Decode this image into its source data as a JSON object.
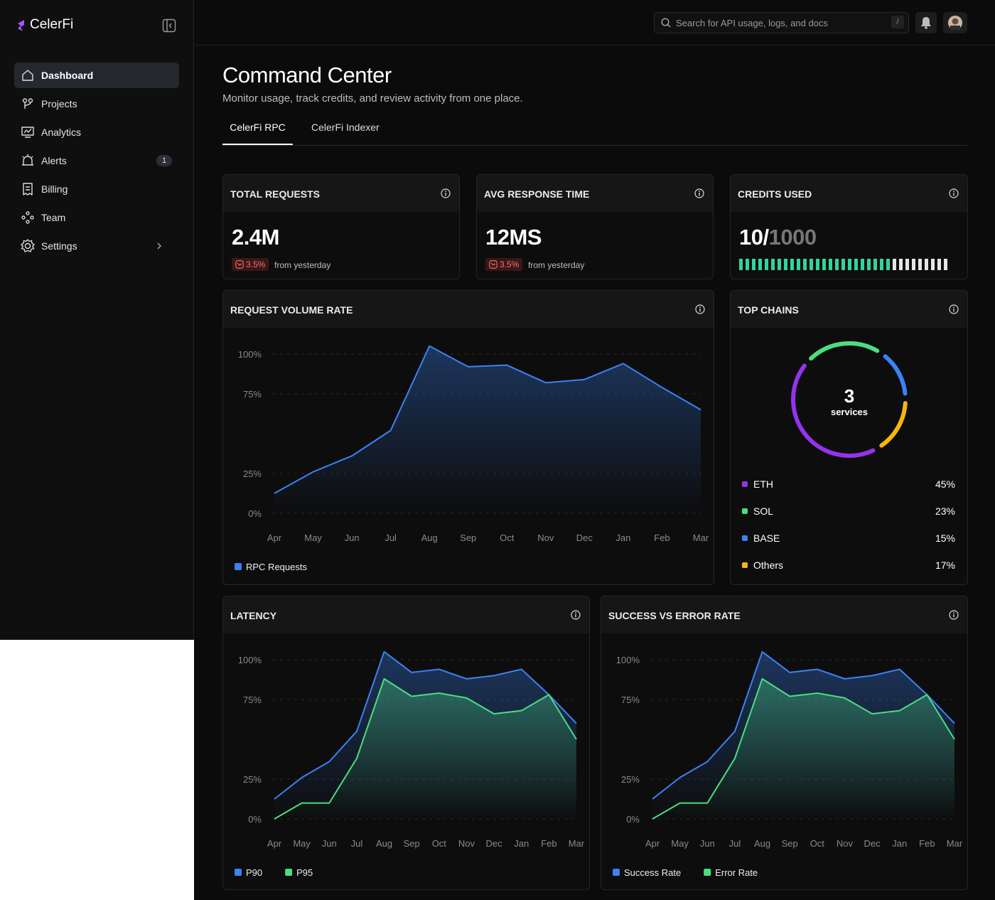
{
  "sidebar": {
    "brand": "CelerFi",
    "nav": [
      {
        "label": "Dashboard"
      },
      {
        "label": "Projects"
      },
      {
        "label": "Analytics"
      },
      {
        "label": "Alerts",
        "badge": "1"
      },
      {
        "label": "Billing"
      },
      {
        "label": "Team"
      },
      {
        "label": "Settings"
      }
    ]
  },
  "header": {
    "search_placeholder": "Search for API usage, logs, and docs",
    "shortcut": "/"
  },
  "page": {
    "title": "Command Center",
    "subtitle": "Monitor usage, track credits, and review activity from one place.",
    "tabs": [
      "CelerFi RPC",
      "CelerFi Indexer"
    ]
  },
  "stats": [
    {
      "label": "TOTAL REQUESTS",
      "value": "2.4M",
      "change": "3.5%",
      "note": "from yesterday"
    },
    {
      "label": "AVG RESPONSE TIME",
      "value": "12MS",
      "change": "3.5%",
      "note": "from yesterday"
    },
    {
      "label": "CREDITS USED",
      "used": "10/",
      "total": "1000"
    }
  ],
  "chart_data": [
    {
      "type": "area",
      "title": "REQUEST VOLUME RATE",
      "categories": [
        "Apr",
        "May",
        "Jun",
        "Jul",
        "Aug",
        "Sep",
        "Oct",
        "Nov",
        "Dec",
        "Jan",
        "Feb",
        "Mar"
      ],
      "series": [
        {
          "name": "RPC Requests",
          "color": "#3b82f6",
          "values": [
            12.5,
            26,
            36,
            52,
            105,
            92,
            93,
            82,
            84,
            94,
            79,
            65
          ]
        }
      ],
      "ylim": [
        0,
        105
      ],
      "yticks": [
        {
          "value": 0,
          "label": "0%"
        },
        {
          "value": 25,
          "label": "25%"
        },
        {
          "value": 75,
          "label": "75%"
        },
        {
          "value": 100,
          "label": "100%"
        }
      ],
      "grid": true
    },
    {
      "type": "donut",
      "title": "TOP CHAINS",
      "center_value": 3,
      "center_label": "services",
      "categories": [
        "ETH",
        "SOL",
        "BASE",
        "Others"
      ],
      "values": [
        45,
        23,
        15,
        17
      ],
      "value_labels": [
        "45%",
        "23%",
        "15%",
        "17%"
      ],
      "colors": [
        "#9333ea",
        "#4ade80",
        "#3b82f6",
        "#f5b70b"
      ]
    },
    {
      "type": "area",
      "title": "LATENCY",
      "categories": [
        "Apr",
        "May",
        "Jun",
        "Jul",
        "Aug",
        "Sep",
        "Oct",
        "Nov",
        "Dec",
        "Jan",
        "Feb",
        "Mar"
      ],
      "series": [
        {
          "name": "P90",
          "color": "#3b82f6",
          "values": [
            12.5,
            26,
            36,
            55,
            105,
            92,
            94,
            88,
            90,
            94,
            78,
            60
          ]
        },
        {
          "name": "P95",
          "color": "#4ade80",
          "values": [
            0,
            10,
            10,
            38,
            88,
            77,
            79,
            76,
            66,
            68,
            78,
            50
          ]
        }
      ],
      "ylim": [
        0,
        105
      ],
      "yticks": [
        {
          "value": 0,
          "label": "0%"
        },
        {
          "value": 25,
          "label": "25%"
        },
        {
          "value": 75,
          "label": "75%"
        },
        {
          "value": 100,
          "label": "100%"
        }
      ],
      "grid": true
    },
    {
      "type": "area",
      "title": "SUCCESS VS ERROR RATE",
      "categories": [
        "Apr",
        "May",
        "Jun",
        "Jul",
        "Aug",
        "Sep",
        "Oct",
        "Nov",
        "Dec",
        "Jan",
        "Feb",
        "Mar"
      ],
      "series": [
        {
          "name": "Success Rate",
          "color": "#3b82f6",
          "values": [
            12.5,
            26,
            36,
            55,
            105,
            92,
            94,
            88,
            90,
            94,
            78,
            60
          ]
        },
        {
          "name": "Error Rate",
          "color": "#4ade80",
          "values": [
            0,
            10,
            10,
            38,
            88,
            77,
            79,
            76,
            66,
            68,
            78,
            50
          ]
        }
      ],
      "ylim": [
        0,
        105
      ],
      "yticks": [
        {
          "value": 0,
          "label": "0%"
        },
        {
          "value": 25,
          "label": "25%"
        },
        {
          "value": 75,
          "label": "75%"
        },
        {
          "value": 100,
          "label": "100%"
        }
      ],
      "grid": true
    }
  ]
}
